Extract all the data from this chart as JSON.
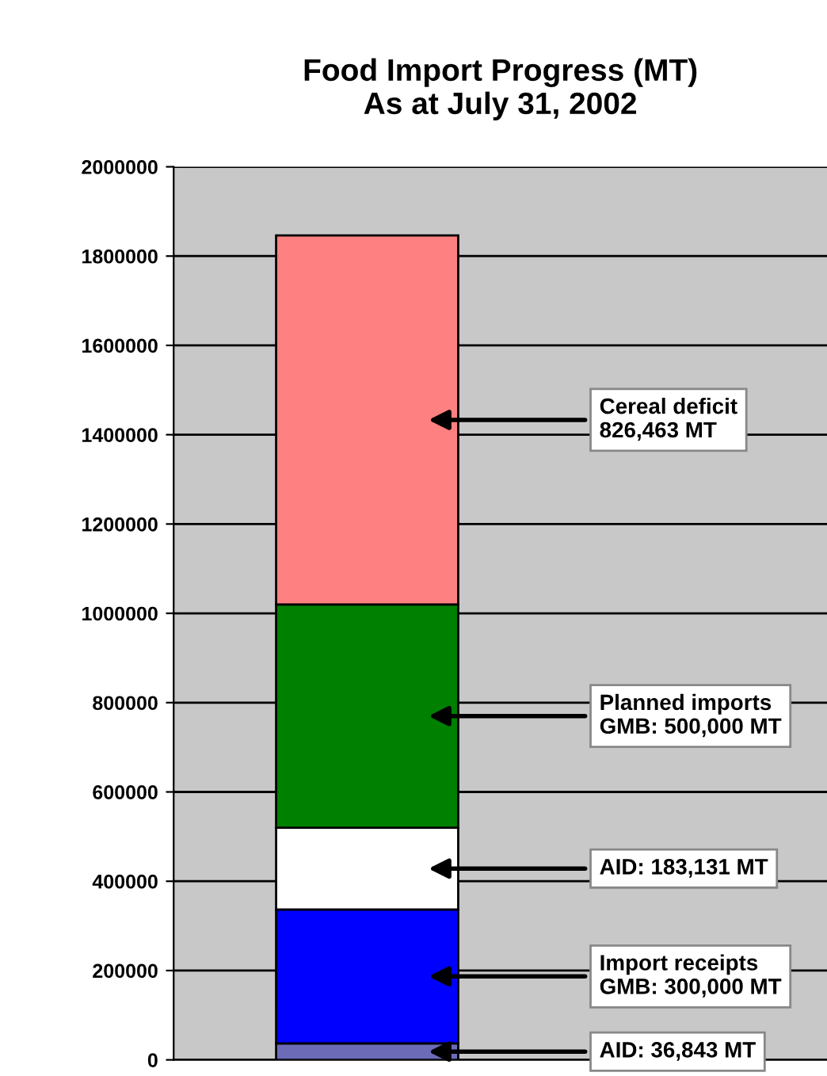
{
  "chart_data": {
    "type": "bar",
    "title": "Food Import Progress (MT)\nAs at July 31, 2002",
    "categories": [
      null
    ],
    "stacked": true,
    "series": [
      {
        "color": "#6b6bb8",
        "values": [
          36843
        ]
      },
      {
        "color": "#0000ff",
        "values": [
          300000
        ]
      },
      {
        "color": "#ffffff",
        "values": [
          183131
        ]
      },
      {
        "color": "#008000",
        "values": [
          500000
        ]
      },
      {
        "color": "#ff8080",
        "values": [
          826463
        ]
      }
    ],
    "ylim": [
      0,
      2000000
    ],
    "yticks": [
      0,
      200000,
      400000,
      600000,
      800000,
      1000000,
      1200000,
      1400000,
      1600000,
      1800000,
      2000000
    ],
    "grid": "y",
    "annotations": [
      "Cereal deficit\n826,463 MT",
      "Planned imports\nGMB: 500,000 MT",
      "AID: 183,131 MT",
      "Import receipts\nGMB: 300,000 MT",
      "AID: 36,843 MT"
    ]
  }
}
